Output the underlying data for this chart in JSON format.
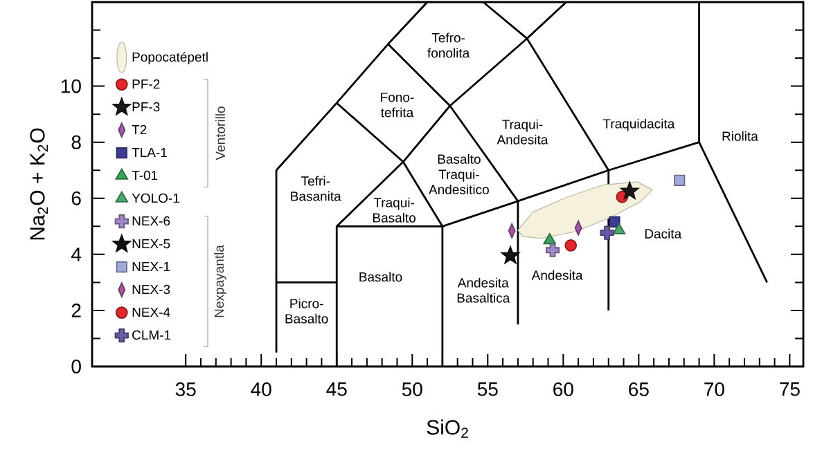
{
  "chart_data": {
    "type": "scatter",
    "xlabel": "SiO$_{2}$",
    "ylabel": "Na$_{2}$O + K$_{2}$O",
    "xlim": [
      28.8,
      75.9
    ],
    "ylim": [
      0,
      13
    ],
    "xticks": [
      35,
      {
        "value": 36,
        "label": null
      },
      {
        "value": 37,
        "label": null
      },
      {
        "value": 38,
        "label": null
      },
      {
        "value": 39,
        "label": null
      },
      40,
      {
        "value": 41,
        "label": null
      },
      {
        "value": 42,
        "label": null
      },
      {
        "value": 43,
        "label": null
      },
      {
        "value": 44,
        "label": null
      },
      45,
      {
        "value": 46,
        "label": null
      },
      {
        "value": 47,
        "label": null
      },
      {
        "value": 48,
        "label": null
      },
      {
        "value": 49,
        "label": null
      },
      50,
      {
        "value": 51,
        "label": null
      },
      {
        "value": 52,
        "label": null
      },
      {
        "value": 53,
        "label": null
      },
      {
        "value": 54,
        "label": null
      },
      55,
      {
        "value": 56,
        "label": null
      },
      {
        "value": 57,
        "label": null
      },
      {
        "value": 58,
        "label": null
      },
      {
        "value": 59,
        "label": null
      },
      60,
      {
        "value": 61,
        "label": null
      },
      {
        "value": 62,
        "label": null
      },
      {
        "value": 63,
        "label": null
      },
      {
        "value": 64,
        "label": null
      },
      65,
      {
        "value": 66,
        "label": null
      },
      {
        "value": 67,
        "label": null
      },
      {
        "value": 68,
        "label": null
      },
      {
        "value": 69,
        "label": null
      },
      70,
      {
        "value": 71,
        "label": null
      },
      {
        "value": 72,
        "label": null
      },
      {
        "value": 73,
        "label": null
      },
      {
        "value": 74,
        "label": null
      },
      75
    ],
    "yticks": [
      0,
      {
        "value": 1,
        "label": null
      },
      2,
      {
        "value": 3,
        "label": null
      },
      4,
      {
        "value": 5,
        "label": null
      },
      6,
      {
        "value": 7,
        "label": null
      },
      8,
      {
        "value": 9,
        "label": null
      },
      10,
      {
        "value": 11,
        "label": null
      },
      {
        "value": 12,
        "label": null
      }
    ],
    "legend": "left",
    "series": [
      {
        "type": "line",
        "color": "#000000",
        "x": [
          41,
          41,
          45,
          48.4,
          51.0
        ],
        "values": [
          0.5,
          7,
          9.4,
          11.5,
          13
        ]
      },
      {
        "type": "line",
        "color": "#000000",
        "x": [
          41,
          45
        ],
        "values": [
          3,
          3
        ]
      },
      {
        "type": "line",
        "color": "#000000",
        "x": [
          45,
          45,
          52,
          57,
          63,
          69,
          73.5
        ],
        "values": [
          0,
          5,
          5,
          5.9,
          7,
          8,
          3
        ]
      },
      {
        "type": "line",
        "color": "#000000",
        "x": [
          69,
          69
        ],
        "values": [
          8,
          13
        ]
      },
      {
        "type": "line",
        "color": "#000000",
        "x": [
          45,
          49.4,
          52.5,
          57.6,
          60.2
        ],
        "values": [
          9.4,
          7.3,
          9.3,
          11.7,
          13
        ]
      },
      {
        "type": "line",
        "color": "#000000",
        "x": [
          48.4,
          52.5,
          57,
          57
        ],
        "values": [
          11.5,
          9.3,
          5.9,
          1.5
        ]
      },
      {
        "type": "line",
        "color": "#000000",
        "x": [
          45,
          49.4,
          52,
          52
        ],
        "values": [
          5,
          7.3,
          5,
          0
        ]
      },
      {
        "type": "line",
        "color": "#000000",
        "x": [
          54.7,
          57.6,
          63,
          63
        ],
        "values": [
          13,
          11.7,
          7,
          2
        ]
      },
      {
        "type": "area",
        "name": "Popocatépetl",
        "color": "#f6f1dc",
        "x": [
          57.0,
          58.0,
          60.3,
          62.6,
          64.9,
          65.9,
          65.1,
          63.1,
          60.8,
          58.5,
          57.3
        ],
        "values": [
          4.86,
          5.51,
          6.05,
          6.47,
          6.59,
          6.3,
          5.88,
          5.31,
          4.81,
          4.57,
          4.64
        ]
      },
      {
        "name": "PF-2",
        "marker": "circle",
        "color": "#e3262d",
        "x": [
          63.9
        ],
        "values": [
          6.05
        ]
      },
      {
        "name": "PF-3",
        "marker": "star",
        "color": "#1a1a1a",
        "x": [
          64.4
        ],
        "values": [
          6.25
        ]
      },
      {
        "name": "T2",
        "marker": "diamond",
        "color": "#a05aa8",
        "x": [
          61.0
        ],
        "values": [
          4.94
        ]
      },
      {
        "name": "TLA-1",
        "marker": "square",
        "color": "#3c3c96",
        "x": [
          63.4
        ],
        "values": [
          5.16
        ]
      },
      {
        "name": "T-01",
        "marker": "triangle",
        "color": "#3aa35a",
        "x": [
          59.1
        ],
        "values": [
          4.5
        ]
      },
      {
        "name": "YOLO-1",
        "marker": "triangle",
        "color": "#4aa86a",
        "x": [
          63.7
        ],
        "values": [
          4.86
        ]
      },
      {
        "name": "NEX-6",
        "marker": "cross",
        "color": "#9d87c6",
        "x": [
          59.3
        ],
        "values": [
          4.15
        ]
      },
      {
        "name": "NEX-5",
        "marker": "star",
        "color": "#111111",
        "x": [
          56.5
        ],
        "values": [
          3.95
        ]
      },
      {
        "name": "NEX-1",
        "marker": "square",
        "color": "#a3a9d8",
        "x": [
          67.7
        ],
        "values": [
          6.64
        ]
      },
      {
        "name": "NEX-3",
        "marker": "diamond",
        "color": "#a9559f",
        "x": [
          56.6
        ],
        "values": [
          4.84
        ]
      },
      {
        "name": "NEX-4",
        "marker": "circle",
        "color": "#e3262d",
        "x": [
          60.5
        ],
        "values": [
          4.32
        ]
      },
      {
        "name": "CLM-1",
        "marker": "cross",
        "color": "#6a5aa8",
        "x": [
          62.9
        ],
        "values": [
          4.77
        ]
      }
    ],
    "annotations": [
      "Tefro-fonolita",
      "Fono-tefrita",
      "Traqui-Andesita",
      "Traquidacita",
      "Riolita",
      "Tefri-Basanita",
      "Basalto Traqui-Andesitico",
      "Traqui-Basalto",
      "Dacita",
      "Andesita",
      "Basalto",
      "Andesita Basaltica",
      "Picro-Basalto",
      "Ventorillo",
      "Nexpayantla"
    ]
  }
}
